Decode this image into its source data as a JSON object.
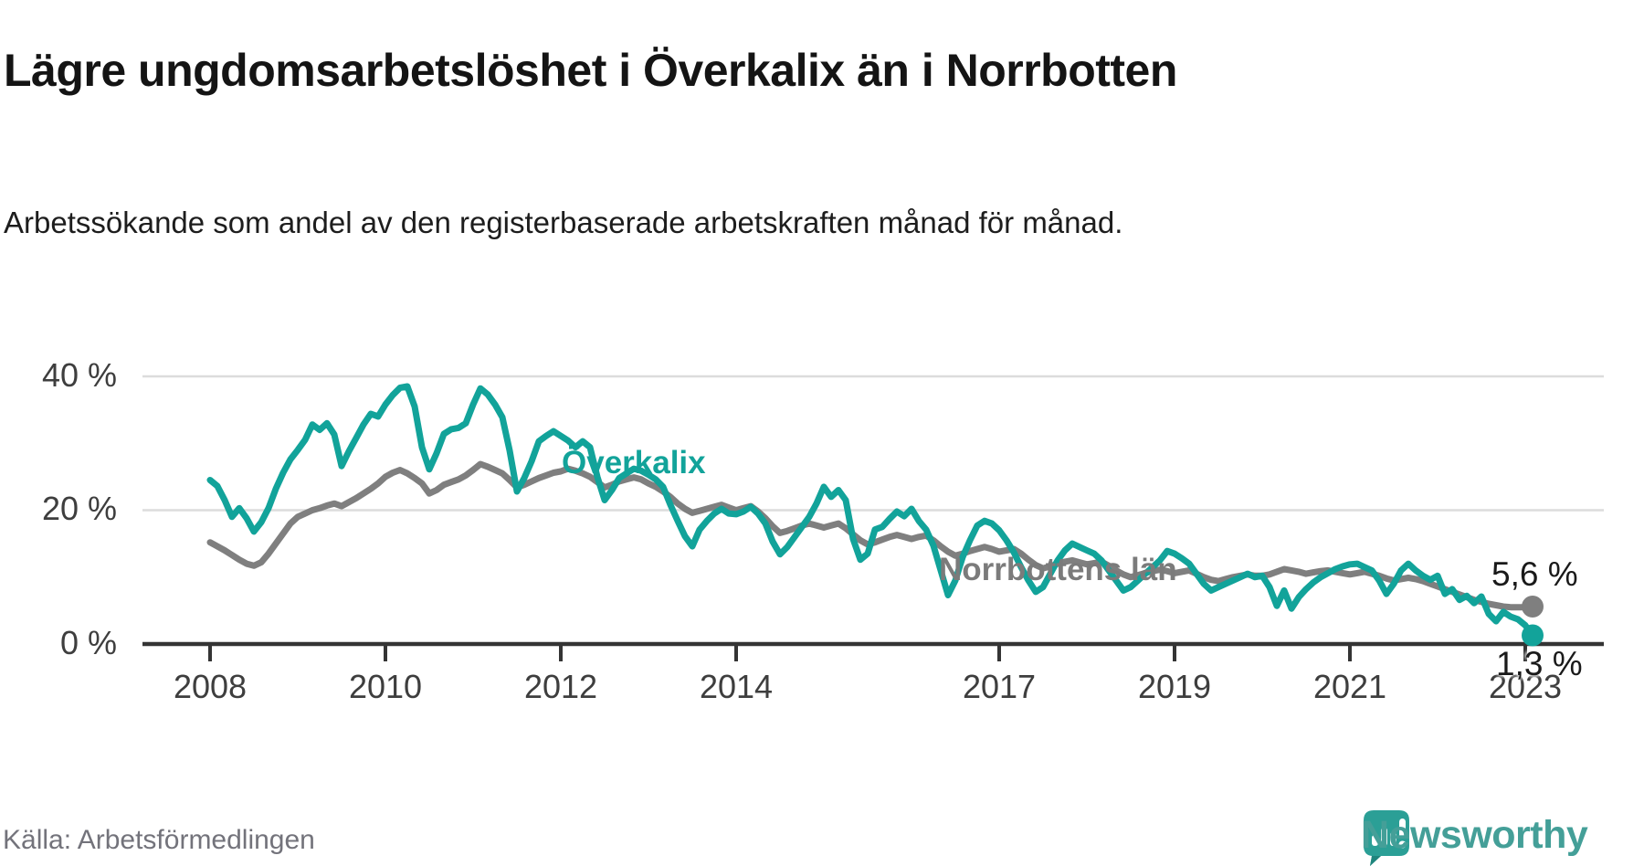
{
  "header": {
    "title": "Lägre ungdomsarbetslöshet i Överkalix än i Norrbotten",
    "subtitle": "Arbetssökande som andel av den registerbaserade arbetskraften månad för månad."
  },
  "footer": {
    "source": "Källa: Arbetsförmedlingen",
    "brand": "Newsworthy"
  },
  "chart_data": {
    "type": "line",
    "x_unit": "month",
    "x_start": "2008-01",
    "x_end": "2023-02",
    "x_tick_years": [
      2008,
      2010,
      2012,
      2014,
      2017,
      2019,
      2021,
      2023
    ],
    "yticks": [
      {
        "value": 0,
        "label": "0 %"
      },
      {
        "value": 20,
        "label": "20 %"
      },
      {
        "value": 40,
        "label": "40 %"
      }
    ],
    "ylim": [
      0,
      42
    ],
    "grid": "horizontal",
    "legend_position": "inline-annotations",
    "series": [
      {
        "name": "Norrbottens län",
        "color": "#7f7f7f",
        "end_value": 5.6,
        "end_label": "5,6 %",
        "values": [
          15.2,
          14.6,
          14.0,
          13.3,
          12.6,
          12.0,
          11.7,
          12.2,
          13.5,
          15.0,
          16.5,
          18.0,
          19.0,
          19.5,
          20.0,
          20.3,
          20.7,
          21.0,
          20.6,
          21.2,
          21.8,
          22.5,
          23.2,
          24.0,
          25.0,
          25.6,
          26.0,
          25.5,
          24.8,
          24.0,
          22.5,
          23.0,
          23.8,
          24.2,
          24.6,
          25.2,
          26.0,
          26.9,
          26.5,
          26.0,
          25.5,
          24.5,
          23.4,
          23.8,
          24.3,
          24.8,
          25.2,
          25.6,
          25.8,
          26.2,
          25.9,
          25.5,
          25.0,
          24.2,
          23.4,
          23.8,
          24.3,
          24.6,
          24.9,
          24.6,
          24.0,
          23.5,
          22.8,
          22.0,
          21.0,
          20.2,
          19.6,
          19.9,
          20.2,
          20.5,
          20.8,
          20.4,
          20.0,
          20.3,
          20.6,
          19.8,
          18.8,
          17.6,
          16.6,
          16.9,
          17.3,
          17.7,
          18.0,
          17.7,
          17.4,
          17.7,
          18.0,
          17.3,
          16.4,
          15.5,
          14.9,
          15.2,
          15.6,
          16.0,
          16.3,
          16.0,
          15.7,
          16.0,
          16.2,
          15.5,
          14.6,
          13.8,
          13.2,
          13.5,
          13.9,
          14.2,
          14.5,
          14.2,
          13.8,
          14.0,
          14.2,
          13.5,
          12.6,
          11.8,
          11.3,
          11.6,
          12.0,
          12.3,
          12.5,
          12.2,
          11.9,
          12.1,
          12.3,
          11.7,
          11.0,
          10.4,
          10.0,
          10.3,
          10.6,
          10.9,
          11.1,
          10.9,
          10.6,
          10.8,
          11.0,
          10.5,
          10.0,
          9.6,
          9.4,
          9.7,
          10.0,
          10.2,
          10.4,
          10.2,
          10.2,
          10.4,
          10.8,
          11.2,
          11.0,
          10.8,
          10.5,
          10.7,
          10.9,
          11.0,
          10.8,
          10.6,
          10.4,
          10.6,
          10.8,
          10.5,
          10.2,
          9.8,
          9.5,
          9.7,
          9.9,
          9.7,
          9.4,
          9.0,
          8.6,
          8.2,
          7.8,
          7.4,
          7.0,
          6.6,
          6.3,
          6.0,
          5.8,
          5.6,
          5.5,
          5.5,
          5.5,
          5.6
        ]
      },
      {
        "name": "Överkalix",
        "color": "#12a39a",
        "end_value": 1.3,
        "end_label": "1,3 %",
        "values": [
          24.5,
          23.6,
          21.5,
          19.0,
          20.3,
          18.8,
          16.8,
          18.2,
          20.3,
          23.2,
          25.6,
          27.6,
          29.0,
          30.5,
          32.8,
          32.0,
          33.0,
          31.3,
          26.6,
          28.8,
          30.8,
          32.8,
          34.4,
          34.0,
          35.8,
          37.2,
          38.3,
          38.5,
          35.5,
          29.4,
          26.1,
          28.5,
          31.4,
          32.1,
          32.3,
          33.0,
          35.8,
          38.2,
          37.3,
          35.8,
          33.9,
          28.9,
          22.8,
          24.8,
          27.3,
          30.3,
          31.1,
          31.8,
          31.1,
          30.4,
          29.4,
          30.3,
          29.4,
          25.0,
          21.5,
          23.0,
          24.8,
          25.5,
          26.2,
          25.9,
          25.3,
          24.6,
          23.5,
          20.8,
          18.4,
          16.1,
          14.6,
          17.1,
          18.4,
          19.5,
          20.2,
          19.5,
          19.4,
          19.8,
          20.5,
          19.5,
          18.0,
          15.3,
          13.4,
          14.5,
          16.0,
          17.5,
          19.0,
          21.0,
          23.5,
          22.0,
          23.0,
          21.5,
          15.7,
          12.6,
          13.5,
          17.1,
          17.5,
          18.7,
          19.8,
          19.1,
          20.2,
          18.4,
          17.1,
          14.7,
          11.0,
          7.3,
          9.5,
          13.0,
          15.5,
          17.7,
          18.4,
          18.0,
          17.0,
          15.5,
          13.7,
          11.5,
          9.5,
          7.8,
          8.5,
          10.5,
          12.5,
          14.0,
          15.0,
          14.5,
          14.0,
          13.5,
          12.5,
          11.0,
          9.5,
          8.0,
          8.5,
          9.5,
          10.5,
          11.5,
          12.5,
          13.9,
          13.5,
          12.8,
          12.0,
          10.5,
          9.0,
          8.0,
          8.5,
          9.0,
          9.5,
          10.0,
          10.5,
          10.0,
          10.2,
          8.5,
          5.7,
          8.0,
          5.3,
          7.0,
          8.2,
          9.2,
          10.0,
          10.6,
          11.2,
          11.6,
          11.9,
          12.0,
          11.5,
          11.0,
          9.5,
          7.5,
          9.0,
          11.0,
          12.0,
          11.0,
          10.2,
          9.6,
          10.2,
          7.5,
          8.2,
          6.6,
          7.2,
          6.1,
          7.1,
          4.5,
          3.4,
          4.8,
          4.1,
          3.7,
          2.8,
          1.3
        ]
      }
    ]
  }
}
